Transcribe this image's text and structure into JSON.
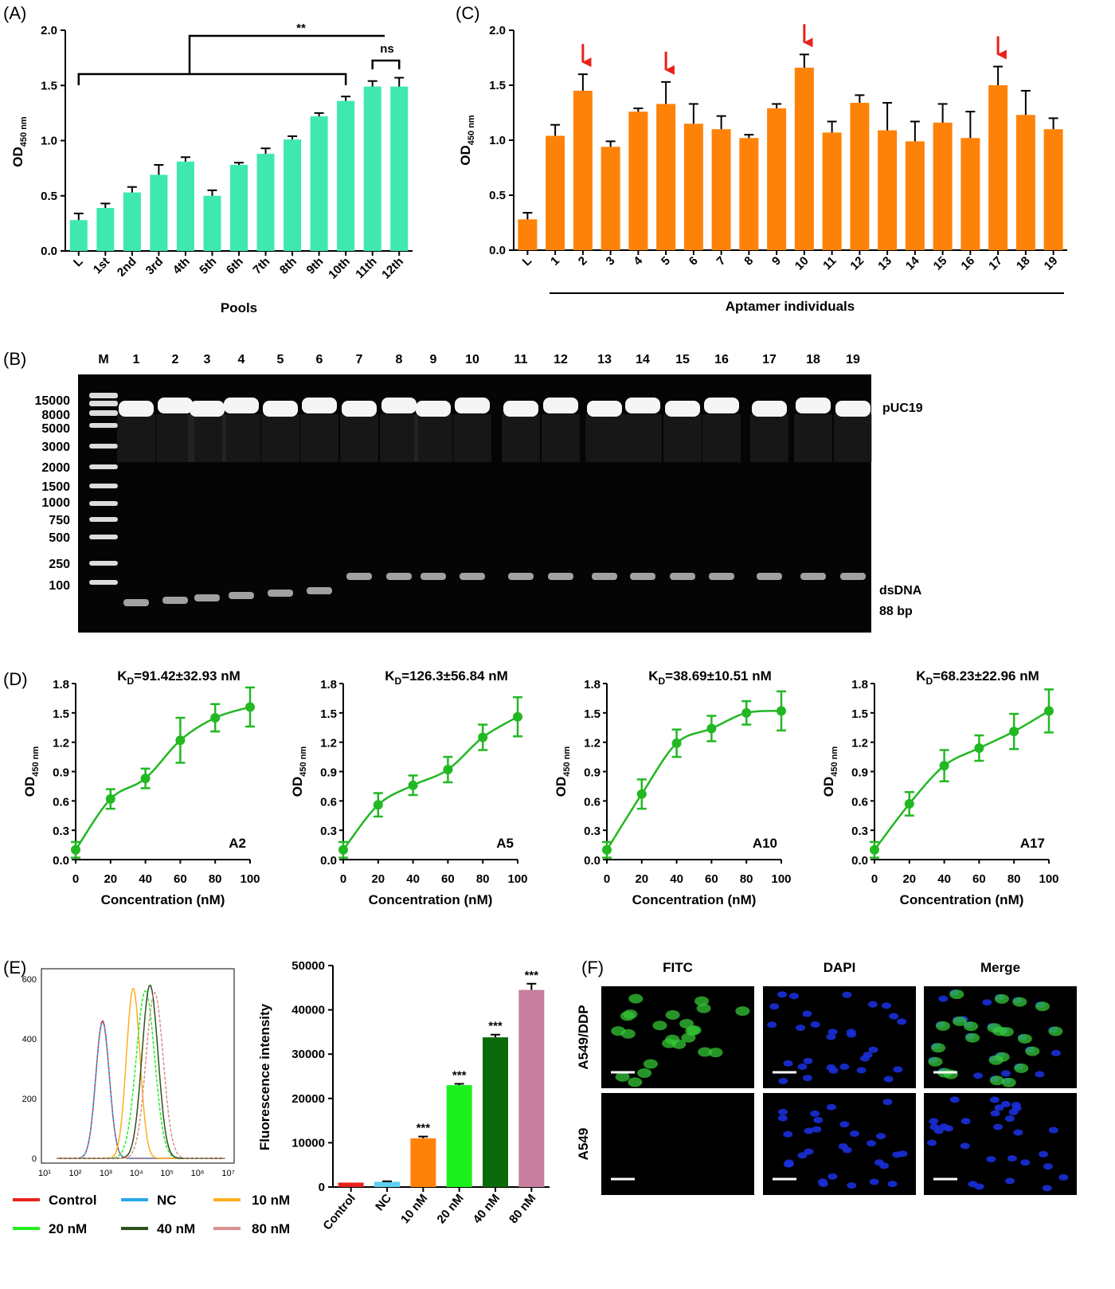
{
  "panels": {
    "A": "(A)",
    "B": "(B)",
    "C": "(C)",
    "D": "(D)",
    "E": "(E)",
    "F": "(F)"
  },
  "colors": {
    "panelA_bar": "#3ee8b0",
    "panelC_bar": "#ff8208",
    "arrow": "#e8211a",
    "curve": "#22b822"
  },
  "chart_data": [
    {
      "id": "A",
      "type": "bar",
      "categories": [
        "L",
        "1st",
        "2nd",
        "3rd",
        "4th",
        "5th",
        "6th",
        "7th",
        "8th",
        "9th",
        "10th",
        "11th",
        "12th"
      ],
      "values": [
        0.28,
        0.39,
        0.53,
        0.69,
        0.81,
        0.5,
        0.78,
        0.88,
        1.01,
        1.22,
        1.36,
        1.49,
        1.49
      ],
      "errors": [
        0.06,
        0.04,
        0.05,
        0.09,
        0.04,
        0.05,
        0.02,
        0.05,
        0.03,
        0.03,
        0.04,
        0.05,
        0.08
      ],
      "xlabel": "Pools",
      "ylabel": "OD",
      "ylabel_sub": "450 nm",
      "ylim": [
        0,
        2.0
      ],
      "yticks": [
        "0.0",
        "0.5",
        "1.0",
        "1.5",
        "2.0"
      ],
      "sig_main": "**",
      "sig_ns": "ns"
    },
    {
      "id": "C",
      "type": "bar",
      "categories": [
        "L",
        "1",
        "2",
        "3",
        "4",
        "5",
        "6",
        "7",
        "8",
        "9",
        "10",
        "11",
        "12",
        "13",
        "14",
        "15",
        "16",
        "17",
        "18",
        "19"
      ],
      "values": [
        0.28,
        1.04,
        1.45,
        0.94,
        1.26,
        1.33,
        1.15,
        1.1,
        1.02,
        1.29,
        1.66,
        1.07,
        1.34,
        1.09,
        0.99,
        1.16,
        1.02,
        1.5,
        1.23,
        1.1
      ],
      "errors": [
        0.06,
        0.1,
        0.15,
        0.05,
        0.03,
        0.2,
        0.18,
        0.12,
        0.03,
        0.04,
        0.12,
        0.1,
        0.07,
        0.25,
        0.18,
        0.17,
        0.24,
        0.17,
        0.22,
        0.1
      ],
      "xlabel": "Aptamer individuals",
      "ylabel": "OD",
      "ylabel_sub": "450 nm",
      "ylim": [
        0,
        2.0
      ],
      "yticks": [
        "0.0",
        "0.5",
        "1.0",
        "1.5",
        "2.0"
      ],
      "arrows_at": [
        "2",
        "5",
        "10",
        "17"
      ]
    },
    {
      "id": "B",
      "type": "gel",
      "lanes": [
        "M",
        "1",
        "2",
        "3",
        "4",
        "5",
        "6",
        "7",
        "8",
        "9",
        "10",
        "11",
        "12",
        "13",
        "14",
        "15",
        "16",
        "17",
        "18",
        "19"
      ],
      "marker_sizes": [
        "15000",
        "8000",
        "5000",
        "3000",
        "2000",
        "1500",
        "1000",
        "750",
        "500",
        "250",
        "100"
      ],
      "band_labels": [
        "pUC19",
        "dsDNA",
        "88 bp"
      ]
    },
    {
      "id": "D",
      "type": "scatter",
      "subplots": [
        {
          "title_pre": "K",
          "title_sub": "D",
          "title_post": "=91.42±32.93 nM",
          "label": "A2",
          "x": [
            0,
            20,
            40,
            60,
            80,
            100
          ],
          "y": [
            0.1,
            0.62,
            0.83,
            1.22,
            1.45,
            1.56
          ],
          "err": [
            0.08,
            0.1,
            0.1,
            0.23,
            0.14,
            0.2
          ]
        },
        {
          "title_pre": "K",
          "title_sub": "D",
          "title_post": "=126.3±56.84 nM",
          "label": "A5",
          "x": [
            0,
            20,
            40,
            60,
            80,
            100
          ],
          "y": [
            0.1,
            0.56,
            0.76,
            0.92,
            1.25,
            1.46
          ],
          "err": [
            0.08,
            0.12,
            0.1,
            0.13,
            0.13,
            0.2
          ]
        },
        {
          "title_pre": "K",
          "title_sub": "D",
          "title_post": "=38.69±10.51 nM",
          "label": "A10",
          "x": [
            0,
            20,
            40,
            60,
            80,
            100
          ],
          "y": [
            0.1,
            0.67,
            1.19,
            1.34,
            1.5,
            1.52
          ],
          "err": [
            0.08,
            0.15,
            0.14,
            0.13,
            0.12,
            0.2
          ]
        },
        {
          "title_pre": "K",
          "title_sub": "D",
          "title_post": "=68.23±22.96 nM",
          "label": "A17",
          "x": [
            0,
            20,
            40,
            60,
            80,
            100
          ],
          "y": [
            0.1,
            0.57,
            0.96,
            1.14,
            1.31,
            1.52
          ],
          "err": [
            0.08,
            0.12,
            0.16,
            0.13,
            0.18,
            0.22
          ]
        }
      ],
      "xlabel": "Concentration (nM)",
      "ylabel": "OD",
      "ylabel_sub": "450 nm",
      "xticks": [
        "0",
        "20",
        "40",
        "60",
        "80",
        "100"
      ],
      "yticks": [
        "0.0",
        "0.3",
        "0.6",
        "0.9",
        "1.2",
        "1.5",
        "1.8"
      ],
      "ylim": [
        0,
        1.8
      ]
    },
    {
      "id": "E-hist",
      "type": "line",
      "yticks": [
        "0",
        "200",
        "400",
        "600"
      ],
      "xticks": [
        "10¹",
        "10²",
        "10³",
        "10⁴",
        "10⁵",
        "10⁶",
        "10⁷"
      ],
      "series": [
        {
          "name": "Control",
          "color": "#e8211a"
        },
        {
          "name": "NC",
          "color": "#2aa7e8"
        },
        {
          "name": "10 nM",
          "color": "#ffad1f"
        },
        {
          "name": "20 nM",
          "color": "#22f022"
        },
        {
          "name": "40 nM",
          "color": "#2f4f1f"
        },
        {
          "name": "80 nM",
          "color": "#d89090"
        }
      ]
    },
    {
      "id": "E-bar",
      "type": "bar",
      "categories": [
        "Control",
        "NC",
        "10 nM",
        "20 nM",
        "40 nM",
        "80 nM"
      ],
      "values": [
        1000,
        1200,
        11000,
        23000,
        33800,
        44500
      ],
      "errors": [
        0,
        100,
        400,
        300,
        600,
        1400
      ],
      "colors": [
        "#e8211a",
        "#5fd0f0",
        "#ff8208",
        "#1cf01c",
        "#0b6b0b",
        "#c77f9e"
      ],
      "sig": [
        "",
        "",
        "***",
        "***",
        "***",
        "***"
      ],
      "ylabel": "Fluorescence intensity",
      "yticks": [
        "0",
        "10000",
        "20000",
        "30000",
        "40000",
        "50000"
      ],
      "ylim": [
        0,
        50000
      ]
    },
    {
      "id": "F",
      "type": "image-grid",
      "columns": [
        "FITC",
        "DAPI",
        "Merge"
      ],
      "rows": [
        "A549/DDP",
        "A549"
      ]
    }
  ]
}
